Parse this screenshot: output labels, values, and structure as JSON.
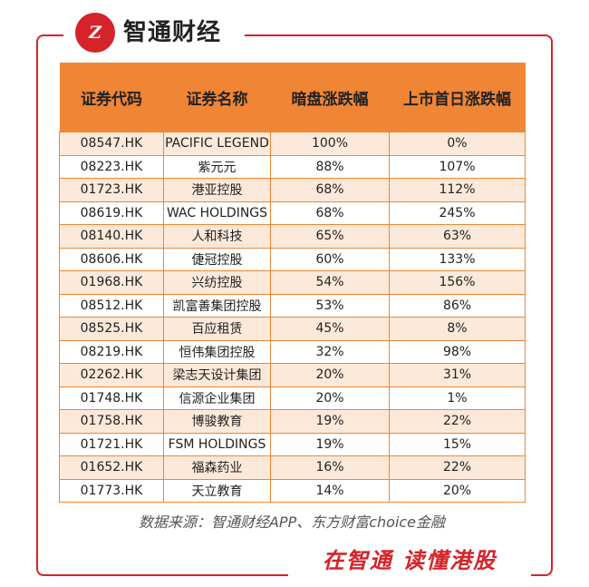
{
  "brand": {
    "logo_text": "Z",
    "name": "智通财经"
  },
  "watermark": "智通财经",
  "table": {
    "headers": [
      "证券代码",
      "证券名称",
      "暗盘涨跌幅",
      "上市首日涨跌幅"
    ],
    "rows": [
      [
        "08547.HK",
        "PACIFIC LEGEND",
        "100%",
        "0%"
      ],
      [
        "08223.HK",
        "紫元元",
        "88%",
        "107%"
      ],
      [
        "01723.HK",
        "港亚控股",
        "68%",
        "112%"
      ],
      [
        "08619.HK",
        "WAC HOLDINGS",
        "68%",
        "245%"
      ],
      [
        "08140.HK",
        "人和科技",
        "65%",
        "63%"
      ],
      [
        "08606.HK",
        "倢冠控股",
        "60%",
        "133%"
      ],
      [
        "01968.HK",
        "兴纺控股",
        "54%",
        "156%"
      ],
      [
        "08512.HK",
        "凯富善集团控股",
        "53%",
        "86%"
      ],
      [
        "08525.HK",
        "百应租赁",
        "45%",
        "8%"
      ],
      [
        "08219.HK",
        "恒伟集团控股",
        "32%",
        "98%"
      ],
      [
        "02262.HK",
        "梁志天设计集团",
        "20%",
        "31%"
      ],
      [
        "01748.HK",
        "信源企业集团",
        "20%",
        "1%"
      ],
      [
        "01758.HK",
        "博骏教育",
        "19%",
        "22%"
      ],
      [
        "01721.HK",
        "FSM HOLDINGS",
        "19%",
        "15%"
      ],
      [
        "01652.HK",
        "福森药业",
        "16%",
        "22%"
      ],
      [
        "01773.HK",
        "天立教育",
        "14%",
        "20%"
      ]
    ]
  },
  "source": "数据来源：智通财经APP、东方财富choice金融",
  "slogan": "在智通  读懂港股",
  "colors": {
    "accent": "#d6232a",
    "header": "#ef8535",
    "row_alt": "#fde9da"
  }
}
